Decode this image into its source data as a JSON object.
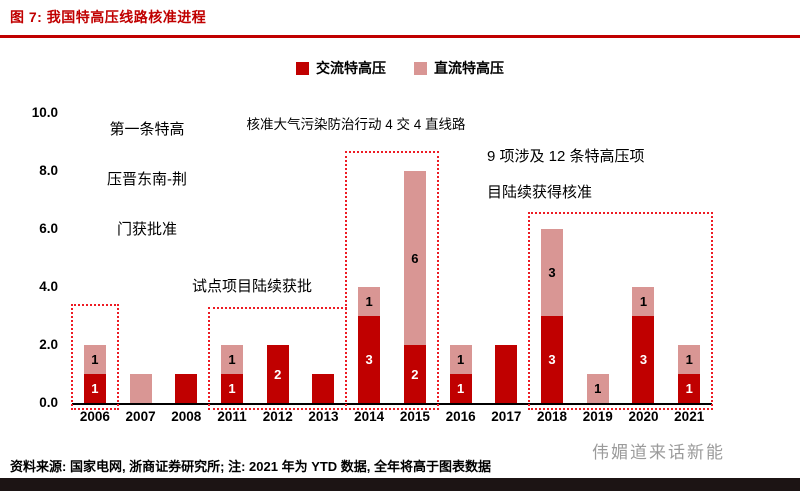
{
  "figure": {
    "title": "图 7: 我国特高压线路核准进程",
    "accent_color": "#c00000"
  },
  "legend": [
    {
      "label": "交流特高压",
      "color": "#c00000"
    },
    {
      "label": "直流特高压",
      "color": "#d99694"
    }
  ],
  "chart_data": {
    "type": "bar",
    "stacked": true,
    "title": "我国特高压线路核准进程",
    "categories": [
      "2006",
      "2007",
      "2008",
      "2011",
      "2012",
      "2013",
      "2014",
      "2015",
      "2016",
      "2017",
      "2018",
      "2019",
      "2020",
      "2021"
    ],
    "series": [
      {
        "name": "交流特高压",
        "color": "#c00000",
        "label_color": "#ffffff",
        "values": [
          1,
          0,
          1,
          1,
          2,
          1,
          3,
          2,
          1,
          2,
          3,
          0,
          3,
          1
        ],
        "labels": [
          "1",
          "",
          "",
          "1",
          "2",
          "",
          "3",
          "2",
          "1",
          "",
          "3",
          "",
          "3",
          "1"
        ]
      },
      {
        "name": "直流特高压",
        "color": "#d99694",
        "label_color": "#000000",
        "values": [
          1,
          1,
          0,
          1,
          0,
          0,
          1,
          6,
          1,
          0,
          3,
          1,
          1,
          1
        ],
        "labels": [
          "1",
          "",
          "",
          "1",
          "",
          "",
          "1",
          "6",
          "1",
          "",
          "3",
          "1",
          "1",
          "1"
        ]
      }
    ],
    "ylim": [
      0,
      10
    ],
    "yticks": [
      "0.0",
      "2.0",
      "4.0",
      "6.0",
      "8.0",
      "10.0"
    ],
    "grid": false,
    "legend_position": "top-center",
    "annotations": [
      {
        "id": "ann1",
        "text": "第一条特高\n压晋东南-荆\n门获批准"
      },
      {
        "id": "ann2",
        "text": "试点项目陆续获批"
      },
      {
        "id": "ann3",
        "text": "核准大气污染防治行动 4 交 4 直线路"
      },
      {
        "id": "ann4",
        "text": "9 项涉及 12 条特高压项\n目陆续获得核准"
      }
    ],
    "highlight_boxes": [
      {
        "from": "2006",
        "to": "2006",
        "top": 3.4
      },
      {
        "from": "2011",
        "to": "2013",
        "top": 3.3
      },
      {
        "from": "2014",
        "to": "2015",
        "top": 8.7
      },
      {
        "from": "2018",
        "to": "2021",
        "top": 6.6
      }
    ]
  },
  "footer": {
    "source_note": "资料来源: 国家电网, 浙商证券研究所; 注: 2021 年为 YTD 数据, 全年将高于图表数据",
    "watermark": "伟媚道来话新能"
  }
}
